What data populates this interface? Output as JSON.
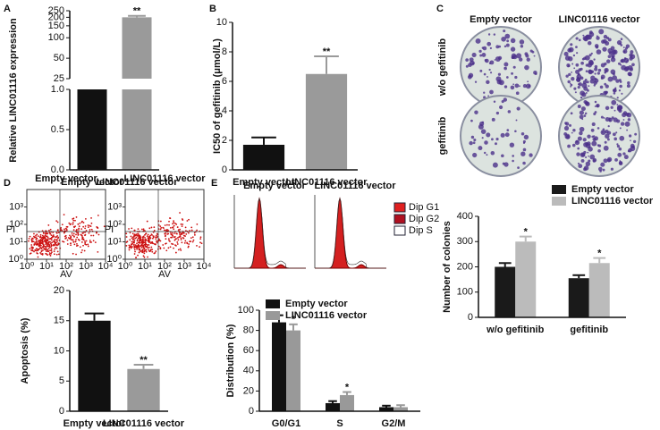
{
  "chart_data": [
    {
      "panel": "A",
      "type": "bar",
      "ylabel": "Relative LINC01116 expression",
      "categories": [
        "Empty vector",
        "LINC01116 vector"
      ],
      "values": [
        1,
        200
      ],
      "errors": [
        0,
        10
      ],
      "significance": [
        null,
        "**"
      ],
      "colors": [
        "#111111",
        "#9a9a9a"
      ],
      "ylim_lower": [
        0,
        1
      ],
      "yticks_lower": [
        {
          "value": 0,
          "label": "0.0"
        },
        0.5,
        {
          "value": 1,
          "label": "1.0"
        }
      ],
      "ylim_upper": [
        25,
        250
      ],
      "yscale_upper": "log",
      "yticks_upper": [
        25,
        50,
        100,
        150,
        200,
        250
      ]
    },
    {
      "panel": "B",
      "type": "bar",
      "ylabel": "IC50 of gefitinib (μmol/L)",
      "categories": [
        "Empty vector",
        "LINC01116 vector"
      ],
      "values": [
        1.7,
        6.5
      ],
      "errors": [
        0.5,
        1.2
      ],
      "significance": [
        null,
        "**"
      ],
      "colors": [
        "#111111",
        "#9a9a9a"
      ],
      "ylim": [
        0,
        10
      ],
      "yticks": [
        0,
        2,
        4,
        6,
        8,
        10
      ]
    },
    {
      "panel": "C",
      "type": "image-grid",
      "columns": [
        "Empty vector",
        "LINC01116 vector"
      ],
      "rows": [
        "w/o gefitinib",
        "gefitinib"
      ]
    },
    {
      "type": "bar",
      "ylabel": "Number of colonies",
      "categories": [
        "w/o gefitinib",
        "gefitinib"
      ],
      "series": [
        {
          "name": "Empty vector",
          "color": "#1a1a1a",
          "values": [
            200,
            155
          ],
          "errors": [
            15,
            12
          ]
        },
        {
          "name": "LINC01116 vector",
          "color": "#bbbbbb",
          "values": [
            300,
            215
          ],
          "errors": [
            20,
            20
          ],
          "significance": [
            "*",
            "*"
          ]
        }
      ],
      "ylim": [
        0,
        400
      ],
      "yticks": [
        0,
        100,
        200,
        300,
        400
      ]
    },
    {
      "panel": "D",
      "type": "flow-scatter",
      "titles": [
        "Empty vector",
        "LINC01116 vector"
      ],
      "xlabel": "AV",
      "ylabel": "PI",
      "log": true,
      "xlim": [
        1,
        10000
      ],
      "ylim": [
        1,
        10000
      ],
      "xticks": [
        {
          "value": 1,
          "label": "10⁰"
        },
        {
          "value": 10,
          "label": "10¹"
        },
        {
          "value": 100,
          "label": "10²"
        },
        {
          "value": 1000,
          "label": "10³"
        },
        {
          "value": 10000,
          "label": "10⁴"
        }
      ],
      "yticks": [
        {
          "value": 1,
          "label": "10⁰"
        },
        {
          "value": 10,
          "label": "10¹"
        },
        {
          "value": 100,
          "label": "10²"
        },
        {
          "value": 1000,
          "label": "10³"
        }
      ]
    },
    {
      "type": "bar",
      "ylabel": "Apoptosis (%)",
      "categories": [
        "Empty vector",
        "LINC01116 vector"
      ],
      "values": [
        15,
        7
      ],
      "errors": [
        1.2,
        0.7
      ],
      "significance": [
        null,
        "**"
      ],
      "colors": [
        "#111111",
        "#9a9a9a"
      ],
      "ylim": [
        0,
        20
      ],
      "yticks": [
        0,
        5,
        10,
        15,
        20
      ]
    },
    {
      "panel": "E",
      "type": "flow-histogram",
      "titles": [
        "Empty vector",
        "LINC01116 vector"
      ],
      "legend": [
        {
          "name": "Dip G1",
          "color": "#e02020"
        },
        {
          "name": "Dip G2",
          "color": "#b01020"
        },
        {
          "name": "Dip S",
          "color": "#ffffff"
        }
      ]
    },
    {
      "type": "bar",
      "ylabel": "Distribution (%)",
      "categories": [
        "G0/G1",
        "S",
        "G2/M"
      ],
      "series": [
        {
          "name": "Empty vector",
          "color": "#111111",
          "values": [
            88,
            8,
            4
          ],
          "errors": [
            7,
            2,
            1.5
          ]
        },
        {
          "name": "LINC01116 vector",
          "color": "#999999",
          "values": [
            80,
            16,
            4
          ],
          "errors": [
            6,
            3,
            2
          ],
          "significance": [
            "*",
            "*",
            null
          ]
        }
      ],
      "ylim": [
        0,
        100
      ],
      "yticks": [
        0,
        20,
        40,
        60,
        80,
        100
      ]
    }
  ]
}
